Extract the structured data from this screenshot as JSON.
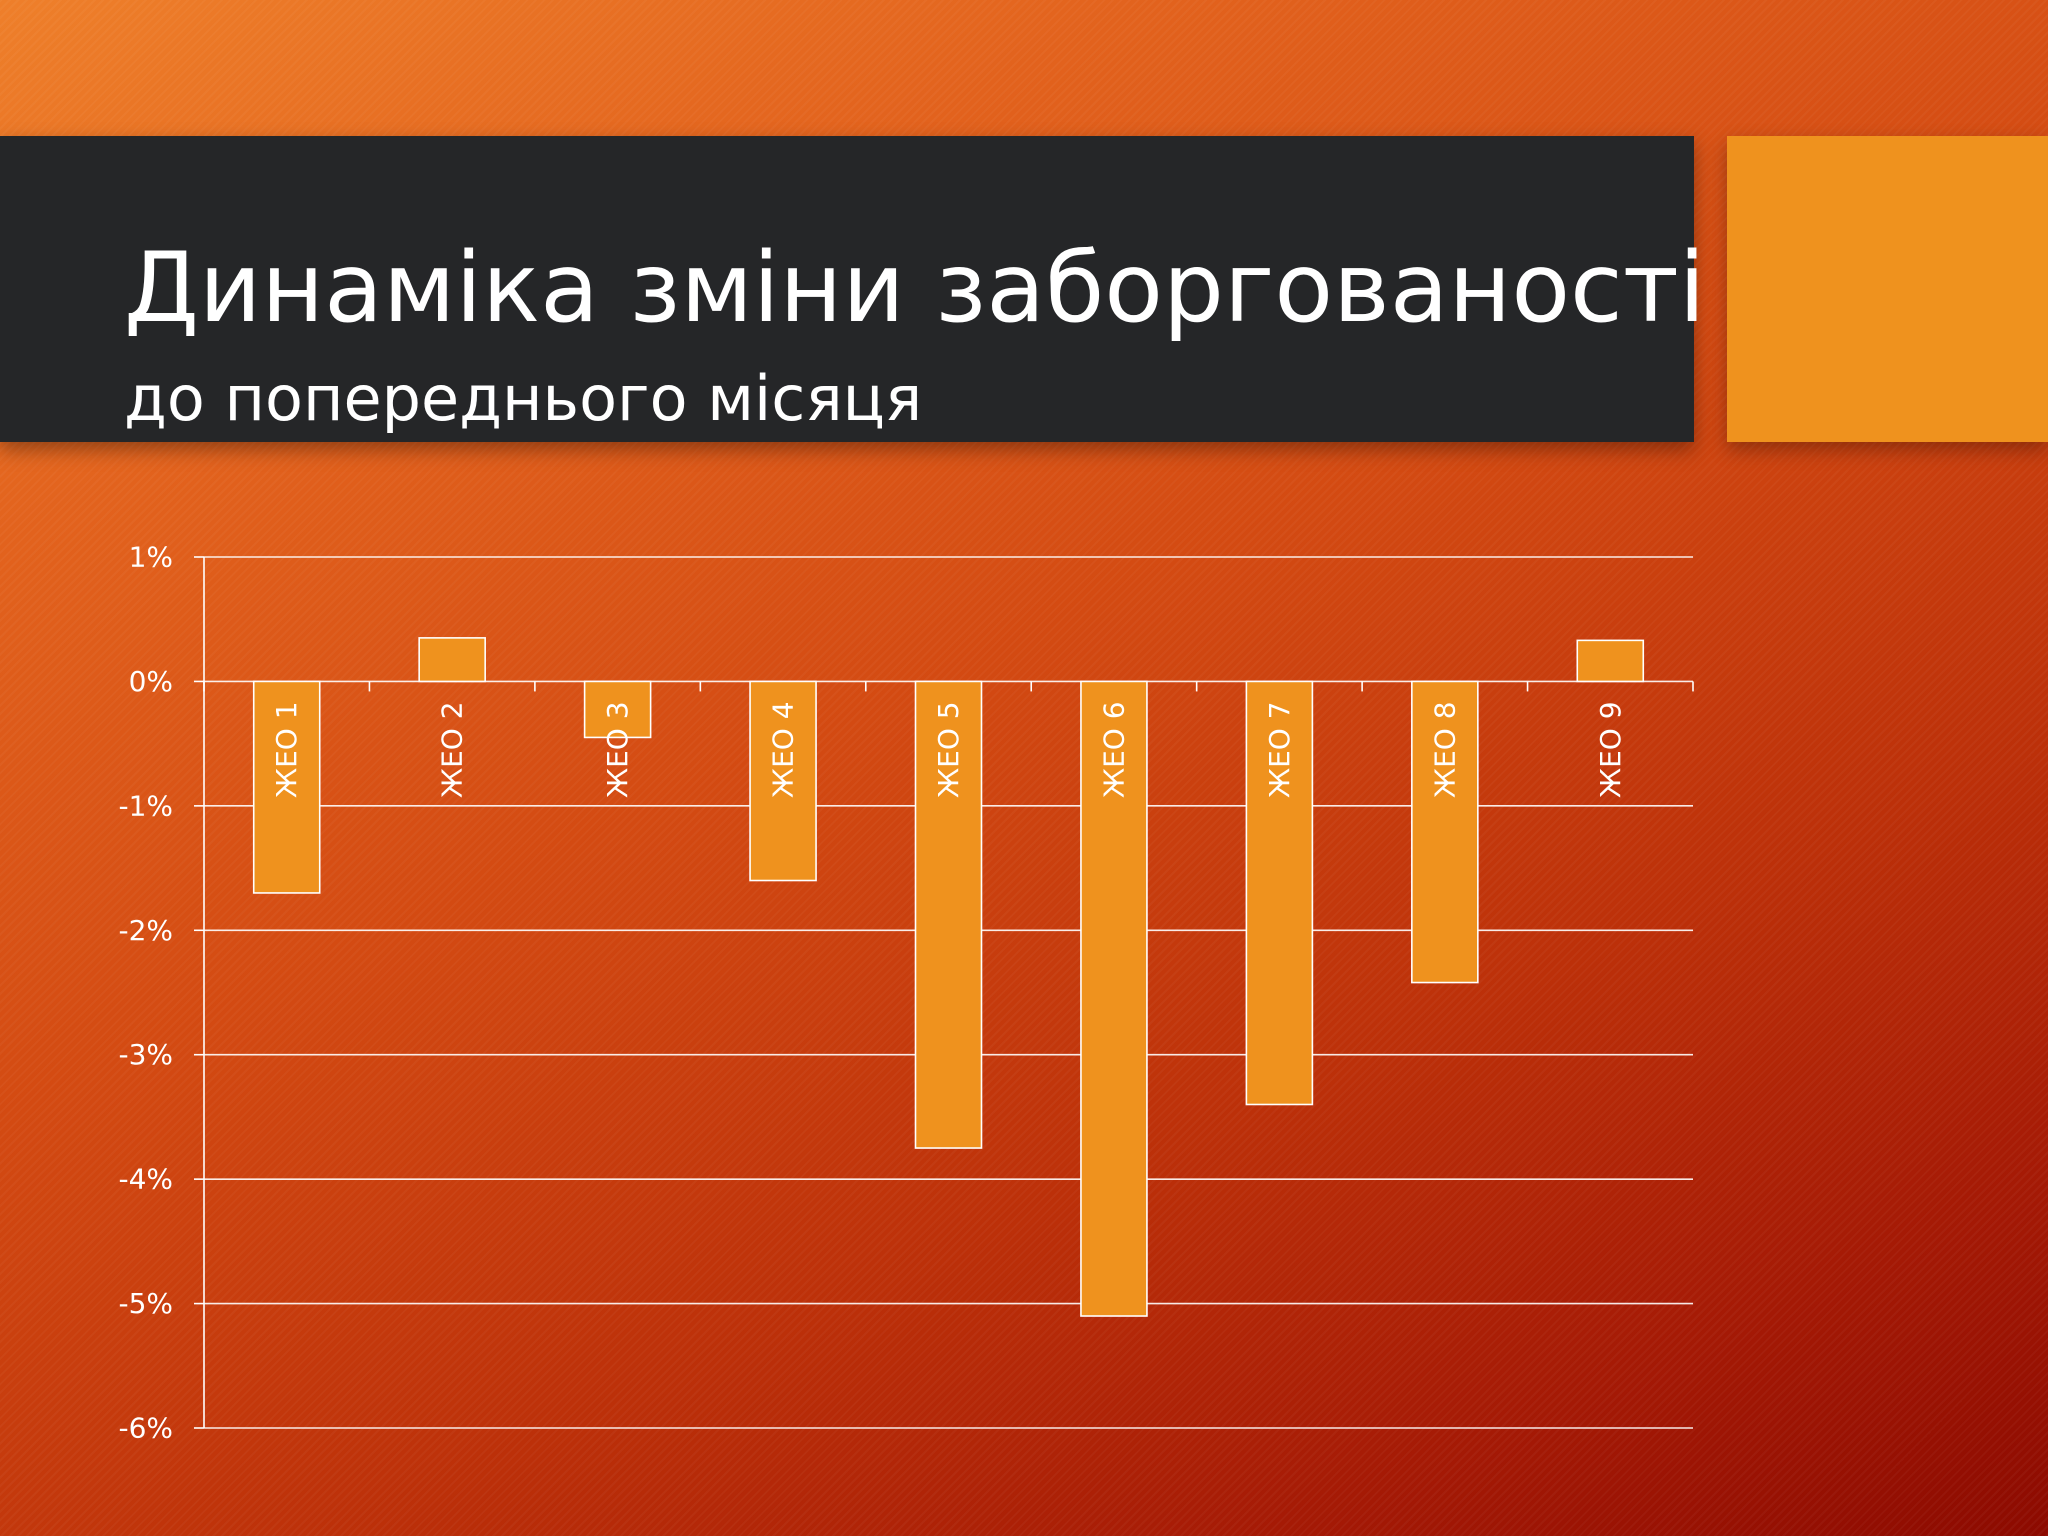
{
  "slide": {
    "title": "Динаміка зміни заборгованості",
    "subtitle": "до попереднього місяця"
  },
  "colors": {
    "bar_fill": "#ef921e",
    "bar_stroke": "#ffffff",
    "gridline": "#ffffff",
    "title_band": "#252628",
    "accent_block": "#ef921e"
  },
  "chart_data": {
    "type": "bar",
    "categories": [
      "ЖЕО 1",
      "ЖЕО 2",
      "ЖЕО 3",
      "ЖЕО 4",
      "ЖЕО 5",
      "ЖЕО 6",
      "ЖЕО 7",
      "ЖЕО 8",
      "ЖЕО 9"
    ],
    "values": [
      -1.7,
      0.35,
      -0.45,
      -1.6,
      -3.75,
      -5.1,
      -3.4,
      -2.42,
      0.33
    ],
    "value_unit": "%",
    "ylim": [
      -6,
      1
    ],
    "yticks": [
      1,
      0,
      -1,
      -2,
      -3,
      -4,
      -5,
      -6
    ],
    "ytick_labels": [
      "1%",
      "0%",
      "-1%",
      "-2%",
      "-3%",
      "-4%",
      "-5%",
      "-6%"
    ],
    "grid": true,
    "category_label_orientation": "vertical",
    "legend": "none"
  }
}
